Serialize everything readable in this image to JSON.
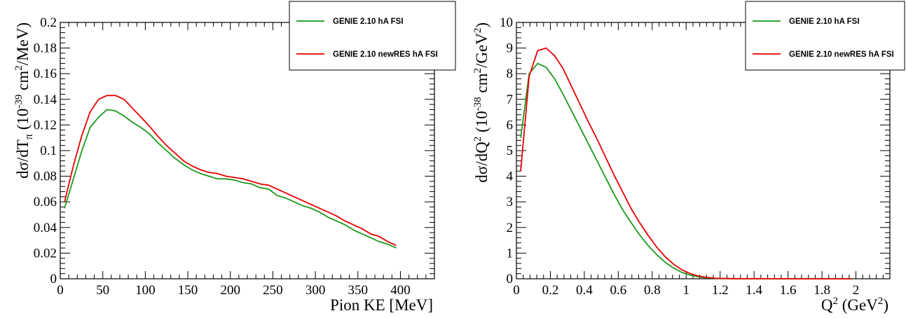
{
  "chart_data": [
    {
      "type": "line",
      "xlabel": "Pion KE [MeV]",
      "ylabel": "dσ/dT_π (10^-39 cm^2/MeV)",
      "ylabel_parts": {
        "main": "dσ/dT",
        "sub": "π",
        "open": "(10",
        "exp1": "-39",
        "mid": " cm",
        "exp2": "2",
        "close": "/MeV)"
      },
      "xlim": [
        0,
        440
      ],
      "ylim": [
        0,
        0.2
      ],
      "x_ticks": [
        0,
        50,
        100,
        150,
        200,
        250,
        300,
        350,
        400
      ],
      "x_tick_labels": [
        "0",
        "50",
        "100",
        "150",
        "200",
        "250",
        "300",
        "350",
        "400"
      ],
      "y_ticks": [
        0,
        0.02,
        0.04,
        0.06,
        0.08,
        0.1,
        0.12,
        0.14,
        0.16,
        0.18,
        0.2
      ],
      "y_tick_labels": [
        "0",
        "0.02",
        "0.04",
        "0.06",
        "0.08",
        "0.1",
        "0.12",
        "0.14",
        "0.16",
        "0.18",
        "0.2"
      ],
      "grid": false,
      "legend_position": "top-right",
      "series": [
        {
          "name": "GENIE 2.10 hA FSI",
          "color": "#1a9a1a",
          "x": [
            5,
            15,
            25,
            35,
            45,
            55,
            65,
            75,
            85,
            95,
            105,
            115,
            125,
            135,
            145,
            155,
            165,
            175,
            185,
            195,
            205,
            215,
            225,
            235,
            245,
            255,
            265,
            275,
            285,
            295,
            305,
            315,
            325,
            335,
            345,
            355,
            365,
            375,
            385,
            395
          ],
          "y": [
            0.055,
            0.077,
            0.099,
            0.118,
            0.126,
            0.132,
            0.131,
            0.127,
            0.122,
            0.118,
            0.113,
            0.106,
            0.1,
            0.094,
            0.089,
            0.085,
            0.082,
            0.08,
            0.078,
            0.078,
            0.077,
            0.075,
            0.074,
            0.071,
            0.07,
            0.065,
            0.063,
            0.06,
            0.057,
            0.055,
            0.052,
            0.048,
            0.045,
            0.042,
            0.038,
            0.035,
            0.032,
            0.029,
            0.027,
            0.024
          ]
        },
        {
          "name": "GENIE 2.10 newRES hA FSI",
          "color": "#e80000",
          "x": [
            5,
            15,
            25,
            35,
            45,
            55,
            65,
            75,
            85,
            95,
            105,
            115,
            125,
            135,
            145,
            155,
            165,
            175,
            185,
            195,
            205,
            215,
            225,
            235,
            245,
            255,
            265,
            275,
            285,
            295,
            305,
            315,
            325,
            335,
            345,
            355,
            365,
            375,
            385,
            395
          ],
          "y": [
            0.06,
            0.087,
            0.111,
            0.13,
            0.14,
            0.143,
            0.143,
            0.14,
            0.133,
            0.126,
            0.119,
            0.111,
            0.104,
            0.098,
            0.092,
            0.088,
            0.085,
            0.083,
            0.082,
            0.08,
            0.079,
            0.078,
            0.076,
            0.074,
            0.073,
            0.07,
            0.067,
            0.064,
            0.061,
            0.058,
            0.055,
            0.052,
            0.049,
            0.045,
            0.042,
            0.039,
            0.035,
            0.033,
            0.029,
            0.026
          ]
        }
      ]
    },
    {
      "type": "line",
      "xlabel": "Q^2 (GeV^2)",
      "xlabel_parts": {
        "main": "Q",
        "exp": "2",
        "open": " (GeV",
        "exp2": "2",
        "close": ")"
      },
      "ylabel": "dσ/dQ^2 (10^-38 cm^2/GeV^2)",
      "ylabel_parts": {
        "main": "dσ/dQ",
        "exp0": "2",
        "open": " (10",
        "exp1": "-38",
        "mid": " cm",
        "exp2": "2",
        "mid2": "/GeV",
        "exp3": "2",
        "close": ")"
      },
      "xlim": [
        0,
        2.2
      ],
      "ylim": [
        0,
        10
      ],
      "x_ticks": [
        0,
        0.2,
        0.4,
        0.6,
        0.8,
        1,
        1.2,
        1.4,
        1.6,
        1.8,
        2
      ],
      "x_tick_labels": [
        "0",
        "0.2",
        "0.4",
        "0.6",
        "0.8",
        "1",
        "1.2",
        "1.4",
        "1.6",
        "1.8",
        "2"
      ],
      "y_ticks": [
        0,
        1,
        2,
        3,
        4,
        5,
        6,
        7,
        8,
        9,
        10
      ],
      "y_tick_labels": [
        "0",
        "1",
        "2",
        "3",
        "4",
        "5",
        "6",
        "7",
        "8",
        "9",
        "10"
      ],
      "grid": false,
      "legend_position": "top-right",
      "series": [
        {
          "name": "GENIE 2.10 hA FSI",
          "color": "#1a9a1a",
          "x": [
            0.025,
            0.075,
            0.125,
            0.175,
            0.225,
            0.275,
            0.325,
            0.375,
            0.425,
            0.475,
            0.525,
            0.575,
            0.625,
            0.675,
            0.725,
            0.775,
            0.825,
            0.875,
            0.925,
            0.975,
            1.025,
            1.075,
            1.125,
            1.175,
            1.225,
            1.3,
            1.5,
            1.7,
            1.9,
            1.975
          ],
          "y": [
            5.5,
            8.0,
            8.4,
            8.25,
            7.8,
            7.2,
            6.55,
            5.9,
            5.25,
            4.6,
            3.95,
            3.3,
            2.7,
            2.2,
            1.72,
            1.3,
            0.95,
            0.65,
            0.42,
            0.25,
            0.14,
            0.07,
            0.035,
            0.015,
            0.008,
            0.004,
            0.002,
            0.001,
            0.0,
            0.0
          ]
        },
        {
          "name": "GENIE 2.10 newRES hA FSI",
          "color": "#e80000",
          "x": [
            0.025,
            0.075,
            0.125,
            0.175,
            0.225,
            0.275,
            0.325,
            0.375,
            0.425,
            0.475,
            0.525,
            0.575,
            0.625,
            0.675,
            0.725,
            0.775,
            0.825,
            0.875,
            0.925,
            0.975,
            1.025,
            1.075,
            1.125,
            1.175,
            1.225,
            1.3,
            1.5,
            1.7,
            1.9,
            1.975
          ],
          "y": [
            4.2,
            7.9,
            8.9,
            9.0,
            8.7,
            8.2,
            7.5,
            6.8,
            6.1,
            5.45,
            4.75,
            4.05,
            3.4,
            2.75,
            2.2,
            1.7,
            1.25,
            0.87,
            0.57,
            0.35,
            0.2,
            0.1,
            0.05,
            0.02,
            0.01,
            0.005,
            0.002,
            0.001,
            0.0,
            0.0
          ]
        }
      ]
    }
  ]
}
